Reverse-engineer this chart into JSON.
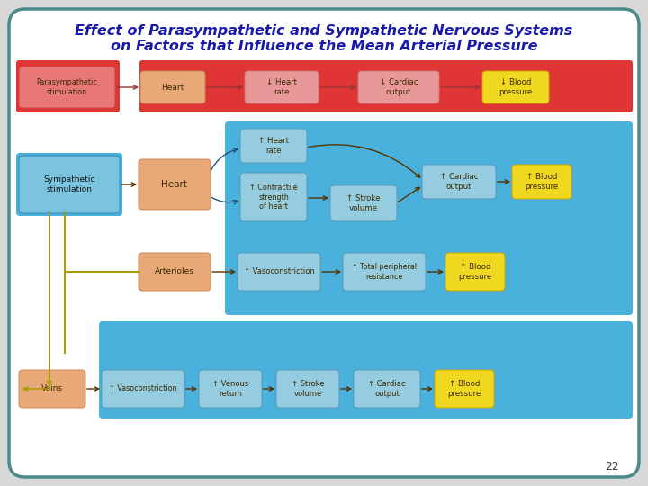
{
  "title_line1": "Effect of Parasympathetic and Sympathetic Nervous Systems",
  "title_line2": "on Factors that Influence the Mean Arterial Pressure",
  "title_color": "#1a1aaa",
  "bg_color": "#d8d8d8",
  "outer_border_color": "#4a8a8a",
  "page_number": "22",
  "white_bg": "#ffffff",
  "para_bg_left": "#e03535",
  "para_bg_right": "#e03535",
  "symp_bg": "#4ab0dc",
  "veins_row_bg": "#4ab0dc",
  "orange_box": "#e8a878",
  "pink_box": "#e89898",
  "red_stim_box": "#e87878",
  "light_blue_box": "#96cce0",
  "yellow_box": "#f0d820",
  "blue_stim_box": "#7ac4e0",
  "arrow_dark": "#553300",
  "arrow_red": "#993333",
  "arrow_blue": "#225577",
  "vert_line_color": "#aa9900",
  "para_stim_label": "Parasympathetic\nstimulation",
  "heart_label": "Heart",
  "heart_rate_down_label": "↓ Heart\nrate",
  "cardiac_out_down_label": "↓ Cardiac\noutput",
  "blood_press_down_label": "↓ Blood\npressure",
  "symp_stim_label": "Sympathetic\nstimulation",
  "heart_rate_up_label": "↑ Heart\nrate",
  "contractile_label": "↑ Contractile\nstrength\nof heart",
  "stroke_vol_label": "↑ Stroke\nvolume",
  "cardiac_out_up_label": "↑ Cardiac\noutput",
  "blood_press_up_label": "↑ Blood\npressure",
  "arterioles_label": "Arterioles",
  "vasoconstriction_label": "↑ Vasoconstriction",
  "total_periph_label": "↑ Total peripheral\nresistance",
  "veins_label": "Veins",
  "venous_return_label": "↑ Venous\nreturn",
  "stroke_vol2_label": "↑ Stroke\nvolume",
  "cardiac_out2_label": "↑ Cardiac\noutput"
}
